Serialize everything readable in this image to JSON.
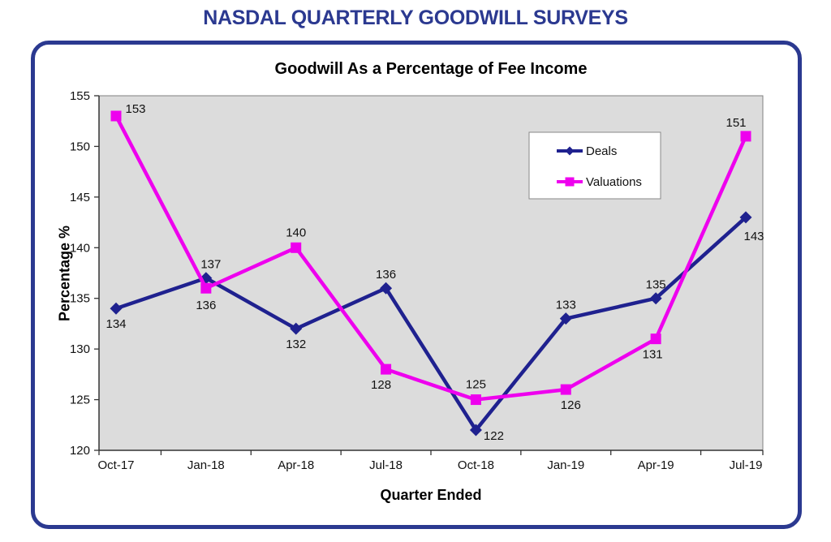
{
  "page_title": "NASDAL QUARTERLY GOODWILL SURVEYS",
  "chart_data": {
    "type": "line",
    "title": "Goodwill As a Percentage of Fee Income",
    "xlabel": "Quarter Ended",
    "ylabel": "Percentage %",
    "categories": [
      "Oct-17",
      "Jan-18",
      "Apr-18",
      "Jul-18",
      "Oct-18",
      "Jan-19",
      "Apr-19",
      "Jul-19"
    ],
    "series": [
      {
        "name": "Deals",
        "marker": "diamond",
        "color": "#1F218F",
        "values": [
          134,
          137,
          132,
          136,
          122,
          133,
          135,
          143
        ]
      },
      {
        "name": "Valuations",
        "marker": "square",
        "color": "#EE00EE",
        "values": [
          153,
          136,
          140,
          128,
          125,
          126,
          131,
          151
        ]
      }
    ],
    "ylim": [
      120,
      155
    ],
    "ytick_step": 5,
    "grid": false,
    "data_labels": true,
    "legend_position": "upper-right",
    "plot_background": "#DCDCDC"
  },
  "colors": {
    "brand_navy": "#2B3990",
    "plot_border": "#808080",
    "axis": "#333333",
    "label_text": "#111111",
    "legend_border": "#888888"
  }
}
